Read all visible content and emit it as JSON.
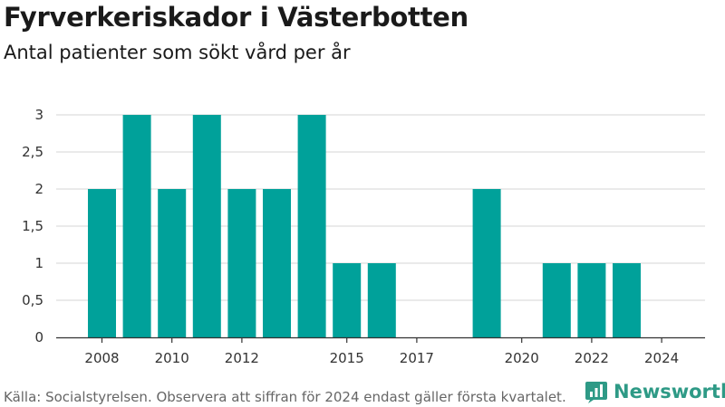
{
  "chart_data": {
    "type": "bar",
    "title": "Fyrverkeriskador i Västerbotten",
    "subtitle": "Antal patienter som sökt vård per år",
    "xlabel": "",
    "ylabel": "",
    "categories": [
      2008,
      2009,
      2010,
      2011,
      2012,
      2013,
      2014,
      2015,
      2016,
      2017,
      2018,
      2019,
      2020,
      2021,
      2022,
      2023,
      2024
    ],
    "values": [
      2,
      3,
      2,
      3,
      2,
      2,
      3,
      1,
      1,
      0,
      0,
      2,
      0,
      1,
      1,
      1,
      0
    ],
    "x_ticks": [
      "2008",
      "2010",
      "2012",
      "2015",
      "2017",
      "2020",
      "2022",
      "2024"
    ],
    "y_ticks": [
      "0",
      "0,5",
      "1",
      "1,5",
      "2",
      "2,5",
      "3"
    ],
    "ylim": [
      0,
      3
    ],
    "grid": true,
    "bar_color": "#00a19a",
    "grid_color": "#dddddd"
  },
  "footer": {
    "source": "Källa: Socialstyrelsen. Observera att siffran för 2024 endast gäller första kvartalet."
  },
  "brand": {
    "name": "Newsworthy",
    "color": "#2e9a86",
    "icon": "newsworthy-logo-icon"
  }
}
